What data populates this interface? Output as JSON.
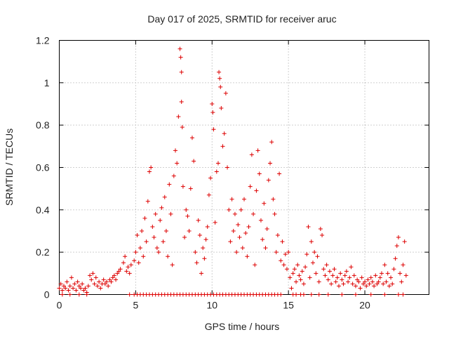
{
  "chart_data": {
    "type": "scatter",
    "title": "Day 017 of 2025, SRMTID for receiver aruc",
    "xlabel": "GPS time / hours",
    "ylabel": "SRMTID / TECUs",
    "xlim": [
      0,
      24.2
    ],
    "ylim": [
      0,
      1.2
    ],
    "xticks": [
      0,
      5,
      10,
      15,
      20
    ],
    "xtick_labels": [
      "0",
      "5",
      "10",
      "15",
      "20"
    ],
    "yticks": [
      0,
      0.2,
      0.4,
      0.6,
      0.8,
      1.0,
      1.2
    ],
    "ytick_labels": [
      "0",
      "0.2",
      "0.4",
      "0.6",
      "0.8",
      "1",
      "1.2"
    ],
    "grid": true,
    "marker": "+",
    "color": "#dd0000",
    "series": [
      {
        "name": "SRMTID",
        "points": [
          [
            0.0,
            0.03
          ],
          [
            0.1,
            0.05
          ],
          [
            0.2,
            0.02
          ],
          [
            0.3,
            0.04
          ],
          [
            0.4,
            0.03
          ],
          [
            0.5,
            0.06
          ],
          [
            0.6,
            0.02
          ],
          [
            0.7,
            0.04
          ],
          [
            0.8,
            0.08
          ],
          [
            0.9,
            0.03
          ],
          [
            1.0,
            0.05
          ],
          [
            1.1,
            0.02
          ],
          [
            1.2,
            0.06
          ],
          [
            1.3,
            0.04
          ],
          [
            1.4,
            0.03
          ],
          [
            1.5,
            0.05
          ],
          [
            1.6,
            0.02
          ],
          [
            1.7,
            0.03
          ],
          [
            1.8,
            0.01
          ],
          [
            1.9,
            0.04
          ],
          [
            2.0,
            0.09
          ],
          [
            2.1,
            0.07
          ],
          [
            2.2,
            0.1
          ],
          [
            2.3,
            0.05
          ],
          [
            2.4,
            0.08
          ],
          [
            2.5,
            0.04
          ],
          [
            2.6,
            0.06
          ],
          [
            2.7,
            0.03
          ],
          [
            2.8,
            0.05
          ],
          [
            2.9,
            0.07
          ],
          [
            3.0,
            0.05
          ],
          [
            3.1,
            0.06
          ],
          [
            3.2,
            0.04
          ],
          [
            3.3,
            0.07
          ],
          [
            3.4,
            0.06
          ],
          [
            3.5,
            0.08
          ],
          [
            3.6,
            0.09
          ],
          [
            3.7,
            0.07
          ],
          [
            3.8,
            0.1
          ],
          [
            3.9,
            0.11
          ],
          [
            4.0,
            0.12
          ],
          [
            4.2,
            0.15
          ],
          [
            4.3,
            0.18
          ],
          [
            4.4,
            0.11
          ],
          [
            4.5,
            0.13
          ],
          [
            4.6,
            0.1
          ],
          [
            4.7,
            0.14
          ],
          [
            4.9,
            0.16
          ],
          [
            5.0,
            0.2
          ],
          [
            5.1,
            0.28
          ],
          [
            5.2,
            0.15
          ],
          [
            5.3,
            0.22
          ],
          [
            5.4,
            0.3
          ],
          [
            5.5,
            0.18
          ],
          [
            5.6,
            0.36
          ],
          [
            5.7,
            0.25
          ],
          [
            5.8,
            0.44
          ],
          [
            5.9,
            0.58
          ],
          [
            6.0,
            0.6
          ],
          [
            6.1,
            0.32
          ],
          [
            6.2,
            0.27
          ],
          [
            6.3,
            0.38
          ],
          [
            6.4,
            0.22
          ],
          [
            6.5,
            0.2
          ],
          [
            6.6,
            0.35
          ],
          [
            6.7,
            0.41
          ],
          [
            6.8,
            0.25
          ],
          [
            6.9,
            0.46
          ],
          [
            7.0,
            0.3
          ],
          [
            7.1,
            0.18
          ],
          [
            7.2,
            0.52
          ],
          [
            7.3,
            0.38
          ],
          [
            7.4,
            0.14
          ],
          [
            7.5,
            0.56
          ],
          [
            7.6,
            0.68
          ],
          [
            7.7,
            0.62
          ],
          [
            7.8,
            0.84
          ],
          [
            7.9,
            1.16
          ],
          [
            7.95,
            1.12
          ],
          [
            8.0,
            1.05
          ],
          [
            8.0,
            0.91
          ],
          [
            8.05,
            0.79
          ],
          [
            8.1,
            0.51
          ],
          [
            8.2,
            0.27
          ],
          [
            8.3,
            0.4
          ],
          [
            8.4,
            0.37
          ],
          [
            8.5,
            0.3
          ],
          [
            8.6,
            0.5
          ],
          [
            8.7,
            0.74
          ],
          [
            8.8,
            0.63
          ],
          [
            8.9,
            0.2
          ],
          [
            9.0,
            0.15
          ],
          [
            9.1,
            0.35
          ],
          [
            9.2,
            0.28
          ],
          [
            9.3,
            0.1
          ],
          [
            9.4,
            0.22
          ],
          [
            9.5,
            0.17
          ],
          [
            9.6,
            0.26
          ],
          [
            9.7,
            0.32
          ],
          [
            9.8,
            0.47
          ],
          [
            9.9,
            0.55
          ],
          [
            10.0,
            0.9
          ],
          [
            10.05,
            0.86
          ],
          [
            10.1,
            0.78
          ],
          [
            10.2,
            0.34
          ],
          [
            10.3,
            0.58
          ],
          [
            10.4,
            0.62
          ],
          [
            10.45,
            1.05
          ],
          [
            10.5,
            1.02
          ],
          [
            10.55,
            0.98
          ],
          [
            10.6,
            0.88
          ],
          [
            10.7,
            0.7
          ],
          [
            10.8,
            0.76
          ],
          [
            10.9,
            0.95
          ],
          [
            11.0,
            0.6
          ],
          [
            11.1,
            0.4
          ],
          [
            11.2,
            0.25
          ],
          [
            11.3,
            0.45
          ],
          [
            11.4,
            0.3
          ],
          [
            11.5,
            0.38
          ],
          [
            11.6,
            0.2
          ],
          [
            11.7,
            0.33
          ],
          [
            11.8,
            0.27
          ],
          [
            11.9,
            0.4
          ],
          [
            12.0,
            0.22
          ],
          [
            12.1,
            0.45
          ],
          [
            12.2,
            0.29
          ],
          [
            12.3,
            0.18
          ],
          [
            12.4,
            0.32
          ],
          [
            12.5,
            0.51
          ],
          [
            12.6,
            0.66
          ],
          [
            12.7,
            0.38
          ],
          [
            12.8,
            0.14
          ],
          [
            12.9,
            0.49
          ],
          [
            13.0,
            0.68
          ],
          [
            13.1,
            0.57
          ],
          [
            13.2,
            0.35
          ],
          [
            13.3,
            0.26
          ],
          [
            13.4,
            0.43
          ],
          [
            13.5,
            0.22
          ],
          [
            13.6,
            0.31
          ],
          [
            13.7,
            0.54
          ],
          [
            13.8,
            0.62
          ],
          [
            13.9,
            0.72
          ],
          [
            14.0,
            0.45
          ],
          [
            14.1,
            0.38
          ],
          [
            14.2,
            0.2
          ],
          [
            14.3,
            0.28
          ],
          [
            14.4,
            0.57
          ],
          [
            14.5,
            0.16
          ],
          [
            14.6,
            0.25
          ],
          [
            14.7,
            0.14
          ],
          [
            14.8,
            0.19
          ],
          [
            14.9,
            0.12
          ],
          [
            15.0,
            0.2
          ],
          [
            15.1,
            0.08
          ],
          [
            15.2,
            0.03
          ],
          [
            15.3,
            0.1
          ],
          [
            15.4,
            0.12
          ],
          [
            15.5,
            0.06
          ],
          [
            15.6,
            0.14
          ],
          [
            15.7,
            0.09
          ],
          [
            15.8,
            0.07
          ],
          [
            15.9,
            0.11
          ],
          [
            16.0,
            0.05
          ],
          [
            16.1,
            0.13
          ],
          [
            16.2,
            0.19
          ],
          [
            16.3,
            0.32
          ],
          [
            16.4,
            0.08
          ],
          [
            16.5,
            0.25
          ],
          [
            16.6,
            0.15
          ],
          [
            16.7,
            0.2
          ],
          [
            16.8,
            0.1
          ],
          [
            16.9,
            0.18
          ],
          [
            17.0,
            0.06
          ],
          [
            17.1,
            0.31
          ],
          [
            17.2,
            0.28
          ],
          [
            17.3,
            0.12
          ],
          [
            17.4,
            0.09
          ],
          [
            17.5,
            0.14
          ],
          [
            17.6,
            0.07
          ],
          [
            17.7,
            0.11
          ],
          [
            17.8,
            0.05
          ],
          [
            17.9,
            0.09
          ],
          [
            18.0,
            0.12
          ],
          [
            18.1,
            0.06
          ],
          [
            18.2,
            0.08
          ],
          [
            18.3,
            0.04
          ],
          [
            18.4,
            0.1
          ],
          [
            18.5,
            0.07
          ],
          [
            18.6,
            0.05
          ],
          [
            18.7,
            0.09
          ],
          [
            18.8,
            0.11
          ],
          [
            18.9,
            0.06
          ],
          [
            19.0,
            0.08
          ],
          [
            19.1,
            0.13
          ],
          [
            19.2,
            0.05
          ],
          [
            19.3,
            0.09
          ],
          [
            19.4,
            0.04
          ],
          [
            19.5,
            0.07
          ],
          [
            19.6,
            0.06
          ],
          [
            19.7,
            0.03
          ],
          [
            19.8,
            0.08
          ],
          [
            19.9,
            0.05
          ],
          [
            20.0,
            0.06
          ],
          [
            20.1,
            0.04
          ],
          [
            20.2,
            0.07
          ],
          [
            20.3,
            0.05
          ],
          [
            20.4,
            0.08
          ],
          [
            20.5,
            0.06
          ],
          [
            20.6,
            0.04
          ],
          [
            20.7,
            0.09
          ],
          [
            20.8,
            0.05
          ],
          [
            20.9,
            0.06
          ],
          [
            21.0,
            0.08
          ],
          [
            21.1,
            0.1
          ],
          [
            21.2,
            0.05
          ],
          [
            21.3,
            0.14
          ],
          [
            21.4,
            0.06
          ],
          [
            21.5,
            0.1
          ],
          [
            21.6,
            0.04
          ],
          [
            21.7,
            0.08
          ],
          [
            21.8,
            0.05
          ],
          [
            21.9,
            0.12
          ],
          [
            22.0,
            0.17
          ],
          [
            22.1,
            0.23
          ],
          [
            22.2,
            0.27
          ],
          [
            22.3,
            0.1
          ],
          [
            22.4,
            0.06
          ],
          [
            22.5,
            0.14
          ],
          [
            22.6,
            0.25
          ],
          [
            22.7,
            0.09
          ],
          [
            5.1,
            0.0
          ],
          [
            5.3,
            0.0
          ],
          [
            5.5,
            0.0
          ],
          [
            5.7,
            0.0
          ],
          [
            5.9,
            0.0
          ],
          [
            6.1,
            0.0
          ],
          [
            6.3,
            0.0
          ],
          [
            6.5,
            0.0
          ],
          [
            6.7,
            0.0
          ],
          [
            6.9,
            0.0
          ],
          [
            7.1,
            0.0
          ],
          [
            7.3,
            0.0
          ],
          [
            7.5,
            0.0
          ],
          [
            7.7,
            0.0
          ],
          [
            7.9,
            0.0
          ],
          [
            8.1,
            0.0
          ],
          [
            8.3,
            0.0
          ],
          [
            8.5,
            0.0
          ],
          [
            8.7,
            0.0
          ],
          [
            8.9,
            0.0
          ],
          [
            9.1,
            0.0
          ],
          [
            9.3,
            0.0
          ],
          [
            9.5,
            0.0
          ],
          [
            9.7,
            0.0
          ],
          [
            9.9,
            0.0
          ],
          [
            10.1,
            0.0
          ],
          [
            10.3,
            0.0
          ],
          [
            10.5,
            0.0
          ],
          [
            10.7,
            0.0
          ],
          [
            10.9,
            0.0
          ],
          [
            11.1,
            0.0
          ],
          [
            11.3,
            0.0
          ],
          [
            11.5,
            0.0
          ],
          [
            11.7,
            0.0
          ],
          [
            11.9,
            0.0
          ],
          [
            12.1,
            0.0
          ],
          [
            12.3,
            0.0
          ],
          [
            12.5,
            0.0
          ],
          [
            12.7,
            0.0
          ],
          [
            12.9,
            0.0
          ],
          [
            13.1,
            0.0
          ],
          [
            13.3,
            0.0
          ],
          [
            13.5,
            0.0
          ],
          [
            13.7,
            0.0
          ],
          [
            13.9,
            0.0
          ],
          [
            14.1,
            0.0
          ],
          [
            14.3,
            0.0
          ],
          [
            14.5,
            0.0
          ],
          [
            15.3,
            0.0
          ],
          [
            15.5,
            0.0
          ],
          [
            15.8,
            0.0
          ],
          [
            16.0,
            0.0
          ],
          [
            16.5,
            0.0
          ],
          [
            17.0,
            0.0
          ],
          [
            17.6,
            0.0
          ],
          [
            18.5,
            0.0
          ],
          [
            19.4,
            0.0
          ],
          [
            20.4,
            0.0
          ],
          [
            21.3,
            0.0
          ],
          [
            22.2,
            0.0
          ],
          [
            22.5,
            0.0
          ],
          [
            0.2,
            0.0
          ],
          [
            0.7,
            0.0
          ],
          [
            1.3,
            0.0
          ],
          [
            1.8,
            0.0
          ],
          [
            4.6,
            0.0
          ],
          [
            4.9,
            0.0
          ]
        ]
      }
    ]
  }
}
